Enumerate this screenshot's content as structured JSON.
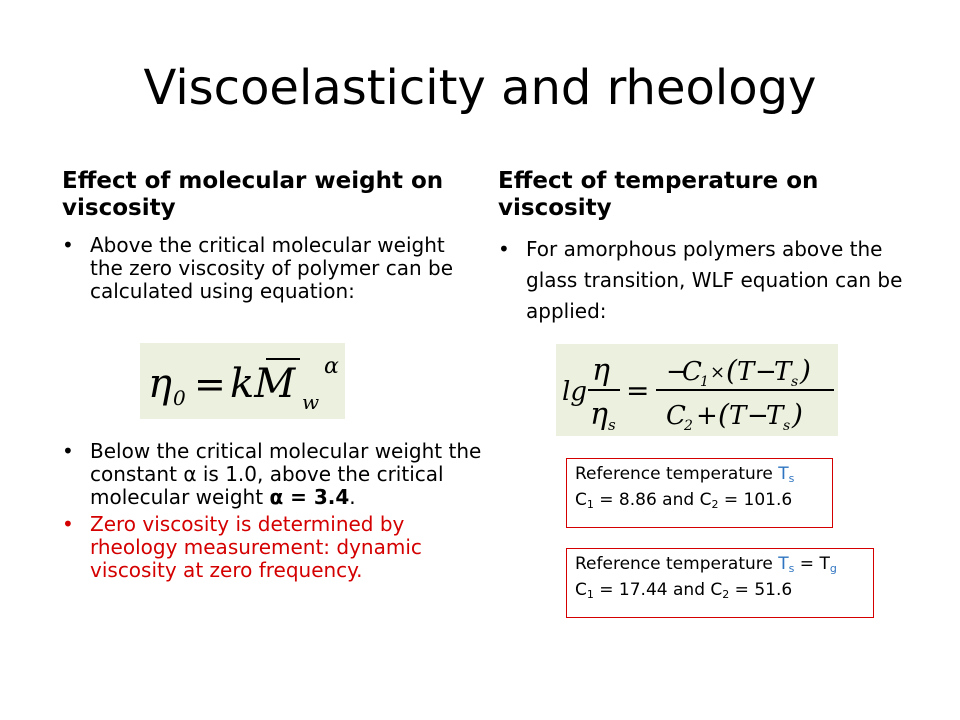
{
  "title": "Viscoelasticity and rheology",
  "left": {
    "heading": "Effect of molecular weight on viscosity",
    "bullet_1": "Above the critical molecular weight the zero viscosity of polymer can be calculated using equation:",
    "formula_1": "η0 = kMw^α",
    "bullet_2_before": "Below the critical molecular weight the constant ",
    "alpha_symbol": "α",
    "bullet_2_mid": " is 1.0, above the critical molecular weight ",
    "bullet_2_bold": "α = 3.4",
    "bullet_2_end": ".",
    "bullet_3": "Zero viscosity is determined by rheology measurement: dynamic viscosity at zero frequency."
  },
  "right": {
    "heading": "Effect of temperature on viscosity",
    "bullet_1": "For amorphous polymers above the glass transition, WLF equation can be applied:",
    "formula_2": "lg η/ηs = −C1×(T−Ts) / (C2+(T−Ts))",
    "box_1": {
      "line_1_text": "Reference temperature ",
      "line_1_sym": "T",
      "line_1_sub": "s",
      "c1_label": "C",
      "c1_sub": "1",
      "c1_value": " = 8.86 and ",
      "c2_label": "C",
      "c2_sub": "2",
      "c2_value": " = 101.6"
    },
    "box_2": {
      "line_1_text": "Reference temperature ",
      "line_1_sym": "T",
      "line_1_sub": "s",
      "eq": " = T",
      "eq_sub": "g",
      "c1_label": "C",
      "c1_sub": "1",
      "c1_value": " = 17.44 and ",
      "c2_label": "C",
      "c2_sub": "2",
      "c2_value": " = 51.6"
    }
  },
  "colors": {
    "accent_red": "#d40000",
    "formula_bg": "#ebf1de",
    "subscript_blue": "#2f74c0"
  }
}
